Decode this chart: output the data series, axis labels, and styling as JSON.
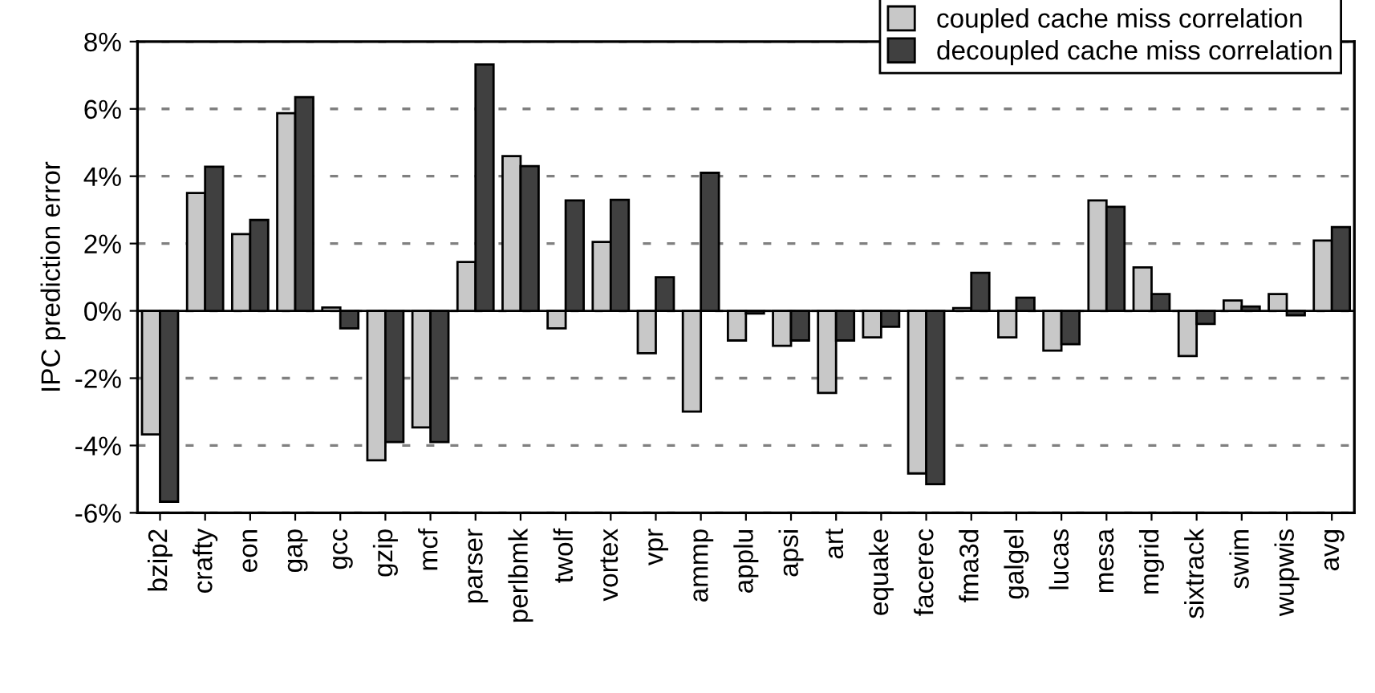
{
  "chart_data": {
    "type": "bar",
    "ylabel": "IPC prediction error",
    "categories": [
      "bzip2",
      "crafty",
      "eon",
      "gap",
      "gcc",
      "gzip",
      "mcf",
      "parser",
      "perlbmk",
      "twolf",
      "vortex",
      "vpr",
      "ammp",
      "applu",
      "apsi",
      "art",
      "equake",
      "facerec",
      "fma3d",
      "galgel",
      "lucas",
      "mesa",
      "mgrid",
      "sixtrack",
      "swim",
      "wupwis",
      "avg"
    ],
    "series": [
      {
        "name": "coupled cache miss correlation",
        "color": "#c8c8c8",
        "values": [
          -3.67,
          3.5,
          2.28,
          5.87,
          0.1,
          -4.44,
          -3.46,
          1.45,
          4.6,
          -0.52,
          2.05,
          -1.26,
          -2.99,
          -0.88,
          -1.04,
          -2.44,
          -0.79,
          -4.83,
          0.08,
          -0.79,
          -1.18,
          3.28,
          1.29,
          -1.34,
          0.31,
          0.5,
          2.09
        ]
      },
      {
        "name": "decoupled cache miss correlation",
        "color": "#404040",
        "values": [
          -5.67,
          4.28,
          2.7,
          6.35,
          -0.52,
          -3.9,
          -3.9,
          7.32,
          4.3,
          3.28,
          3.3,
          1.0,
          4.1,
          -0.08,
          -0.88,
          -0.88,
          -0.47,
          -5.15,
          1.13,
          0.39,
          -0.99,
          3.09,
          0.5,
          -0.39,
          0.13,
          -0.13,
          2.49
        ]
      }
    ],
    "ylim": [
      -6,
      8
    ],
    "yticks": [
      {
        "value": -6,
        "label": "-6%"
      },
      {
        "value": -4,
        "label": "-4%"
      },
      {
        "value": -2,
        "label": "-2%"
      },
      {
        "value": 0,
        "label": "0%"
      },
      {
        "value": 2,
        "label": "2%"
      },
      {
        "value": 4,
        "label": "4%"
      },
      {
        "value": 6,
        "label": "6%"
      },
      {
        "value": 8,
        "label": "8%"
      }
    ],
    "grid": "y",
    "legend": "top right"
  }
}
